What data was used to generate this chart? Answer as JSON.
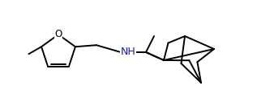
{
  "bg_color": "#ffffff",
  "line_color": "#000000",
  "nh_color": "#1a1aaa",
  "line_width": 1.4,
  "font_size": 8.5,
  "figsize": [
    3.17,
    1.27
  ],
  "dpi": 100
}
